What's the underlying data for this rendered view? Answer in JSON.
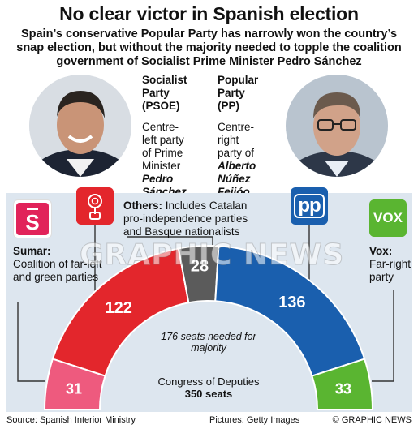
{
  "header": {
    "title": "No clear victor in Spanish election",
    "subtitle": "Spain’s conservative Popular Party has narrowly won the country’s snap election, but without the majority needed to topple the coalition government of Socialist Prime Minister Pedro Sánchez"
  },
  "psoe": {
    "name_line1": "Socialist",
    "name_line2": "Party",
    "name_line3": "(PSOE)",
    "desc_lines": [
      "Centre-",
      "left party",
      "of Prime",
      "Minister"
    ],
    "leader_line1": "Pedro",
    "leader_line2": "Sánchez"
  },
  "pp": {
    "name_line1": "Popular",
    "name_line2": "Party",
    "name_line3": "(PP)",
    "desc_lines": [
      "Centre-",
      "right",
      "party of"
    ],
    "leader_line1": "Alberto",
    "leader_line2": "Núñez",
    "leader_line3": "Feijóo"
  },
  "others": {
    "label": "Others:",
    "text": "Includes Catalan pro-independence parties and Basque nationalists"
  },
  "sumar": {
    "label": "Sumar:",
    "text": "Coalition of far-left and green parties"
  },
  "vox": {
    "label": "Vox:",
    "text": "Far-right party",
    "logo_text": "VOX"
  },
  "pp_logo_text": "pp",
  "chart_data": {
    "type": "hemicycle",
    "total_seats": 350,
    "total_label": "350 seats",
    "chamber": "Congress of Deputies",
    "majority_text": "176 seats needed for majority",
    "parties": [
      {
        "key": "psoe",
        "label": "122",
        "seats": 122,
        "color": "#e3262c"
      },
      {
        "key": "others",
        "label": "28",
        "seats": 28,
        "color": "#5b5b5b"
      },
      {
        "key": "pp",
        "label": "136",
        "seats": 136,
        "color": "#1a5fae"
      },
      {
        "key": "sumar",
        "label": "31",
        "seats": 31,
        "color": "#ee5a7e"
      },
      {
        "key": "vox",
        "label": "33",
        "seats": 33,
        "color": "#5ab531"
      }
    ]
  },
  "footer": {
    "source": "Source: Spanish Interior Ministry",
    "pictures": "Pictures: Getty Images",
    "credit": "© GRAPHIC NEWS"
  },
  "watermark": "GRAPHIC NEWS",
  "colors": {
    "psoe": "#e3262c",
    "pp": "#1a5fae",
    "sumar": "#e1235a",
    "vox": "#5ab531",
    "others": "#5b5b5b",
    "panel": "#dde6ef"
  }
}
